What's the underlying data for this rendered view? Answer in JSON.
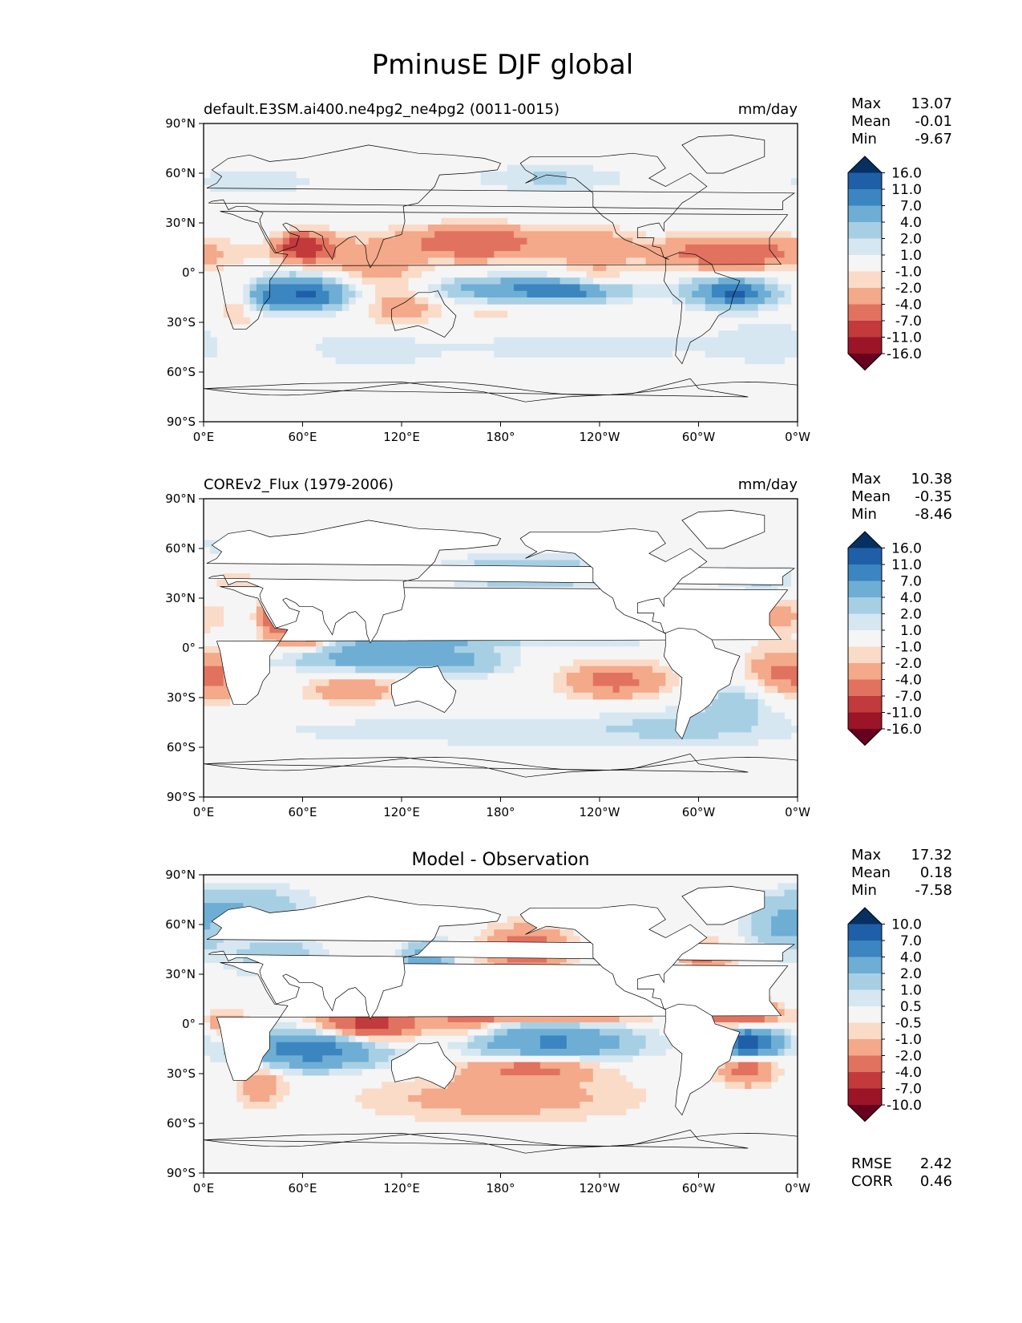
{
  "figure": {
    "title": "PminusE DJF global"
  },
  "chart_data": [
    {
      "type": "heatmap",
      "title": "default.E3SM.ai400.ne4pg2_ne4pg2 (0011-0015)",
      "units": "mm/day",
      "x_ticks": [
        "0°E",
        "60°E",
        "120°E",
        "180°",
        "120°W",
        "60°W",
        "0°W"
      ],
      "y_ticks": [
        "90°N",
        "60°N",
        "30°N",
        "0°",
        "30°S",
        "60°S",
        "90°S"
      ],
      "xlim": [
        0,
        360
      ],
      "ylim": [
        -90,
        90
      ],
      "stats": [
        {
          "label": "Max",
          "value": "13.07"
        },
        {
          "label": "Mean",
          "value": "-0.01"
        },
        {
          "label": "Min",
          "value": "-9.67"
        }
      ],
      "colorbar": {
        "levels": [
          "16.0",
          "11.0",
          "7.0",
          "4.0",
          "2.0",
          "1.0",
          "-1.0",
          "-2.0",
          "-4.0",
          "-7.0",
          "-11.0",
          "-16.0"
        ],
        "colors": [
          "#053061",
          "#1f5fa8",
          "#3b86c0",
          "#6eaed5",
          "#a7cfe4",
          "#d6e7f1",
          "#f5f5f5",
          "#fadbc8",
          "#f3a98a",
          "#e27260",
          "#c23a3b",
          "#9c1428",
          "#67001f"
        ]
      },
      "blobs": [
        {
          "lon": 60,
          "lat": -12,
          "sx": 22,
          "sy": 7,
          "v": 9
        },
        {
          "lon": 65,
          "lat": -15,
          "sx": 9,
          "sy": 4,
          "v": 4
        },
        {
          "lon": 195,
          "lat": -10,
          "sx": 40,
          "sy": 5,
          "v": 7
        },
        {
          "lon": 225,
          "lat": -12,
          "sx": 18,
          "sy": 4,
          "v": 4
        },
        {
          "lon": 320,
          "lat": -12,
          "sx": 18,
          "sy": 6,
          "v": 9
        },
        {
          "lon": 325,
          "lat": -13,
          "sx": 7,
          "sy": 3,
          "v": 4
        },
        {
          "lon": 40,
          "lat": -15,
          "sx": 8,
          "sy": 5,
          "v": 4
        },
        {
          "lon": 210,
          "lat": 57,
          "sx": 35,
          "sy": 6,
          "v": 2.2
        },
        {
          "lon": 30,
          "lat": 55,
          "sx": 30,
          "sy": 6,
          "v": 1.8
        },
        {
          "lon": 230,
          "lat": -45,
          "sx": 60,
          "sy": 8,
          "v": 1.6
        },
        {
          "lon": 100,
          "lat": -45,
          "sx": 30,
          "sy": 10,
          "v": 1.6
        },
        {
          "lon": 345,
          "lat": -42,
          "sx": 25,
          "sy": 10,
          "v": 1.7
        },
        {
          "lon": 62,
          "lat": 15,
          "sx": 12,
          "sy": 6,
          "v": -9
        },
        {
          "lon": 55,
          "lat": 18,
          "sx": 5,
          "sy": 3,
          "v": -4
        },
        {
          "lon": 165,
          "lat": 18,
          "sx": 28,
          "sy": 7,
          "v": -7
        },
        {
          "lon": 235,
          "lat": 15,
          "sx": 18,
          "sy": 10,
          "v": -3
        },
        {
          "lon": 320,
          "lat": 12,
          "sx": 35,
          "sy": 7,
          "v": -6
        },
        {
          "lon": 100,
          "lat": 5,
          "sx": 22,
          "sy": 12,
          "v": -3
        },
        {
          "lon": 120,
          "lat": -20,
          "sx": 18,
          "sy": 10,
          "v": -3
        },
        {
          "lon": 20,
          "lat": -20,
          "sx": 10,
          "sy": 12,
          "v": -2.2
        },
        {
          "lon": 240,
          "lat": -5,
          "sx": 10,
          "sy": 5,
          "v": -2.2
        },
        {
          "lon": 175,
          "lat": -25,
          "sx": 12,
          "sy": 4,
          "v": -1.6
        }
      ]
    },
    {
      "type": "heatmap",
      "title": "COREv2_Flux (1979-2006)",
      "units": "mm/day",
      "x_ticks": [
        "0°E",
        "60°E",
        "120°E",
        "180°",
        "120°W",
        "60°W",
        "0°W"
      ],
      "y_ticks": [
        "90°N",
        "60°N",
        "30°N",
        "0°",
        "30°S",
        "60°S",
        "90°S"
      ],
      "xlim": [
        0,
        360
      ],
      "ylim": [
        -90,
        90
      ],
      "stats": [
        {
          "label": "Max",
          "value": "10.38"
        },
        {
          "label": "Mean",
          "value": "-0.35"
        },
        {
          "label": "Min",
          "value": "-8.46"
        }
      ],
      "colorbar": {
        "levels": [
          "16.0",
          "11.0",
          "7.0",
          "4.0",
          "2.0",
          "1.0",
          "-1.0",
          "-2.0",
          "-4.0",
          "-7.0",
          "-11.0",
          "-16.0"
        ],
        "colors": [
          "#053061",
          "#1f5fa8",
          "#3b86c0",
          "#6eaed5",
          "#a7cfe4",
          "#d6e7f1",
          "#f5f5f5",
          "#fadbc8",
          "#f3a98a",
          "#e27260",
          "#c23a3b",
          "#9c1428",
          "#67001f"
        ]
      },
      "blobs": [
        {
          "lon": 195,
          "lat": 45,
          "sx": 35,
          "sy": 7,
          "v": 4.5
        },
        {
          "lon": 150,
          "lat": 7,
          "sx": 40,
          "sy": 4,
          "v": 5
        },
        {
          "lon": 250,
          "lat": 7,
          "sx": 30,
          "sy": 3,
          "v": 3
        },
        {
          "lon": 110,
          "lat": -2,
          "sx": 25,
          "sy": 7,
          "v": 5
        },
        {
          "lon": 150,
          "lat": -8,
          "sx": 25,
          "sy": 6,
          "v": 4.5
        },
        {
          "lon": 75,
          "lat": -7,
          "sx": 25,
          "sy": 5,
          "v": 3
        },
        {
          "lon": 325,
          "lat": -30,
          "sx": 15,
          "sy": 8,
          "v": 2.5
        },
        {
          "lon": 340,
          "lat": 40,
          "sx": 25,
          "sy": 8,
          "v": 2.5
        },
        {
          "lon": 180,
          "lat": -50,
          "sx": 120,
          "sy": 7,
          "v": 1.7
        },
        {
          "lon": 300,
          "lat": -45,
          "sx": 40,
          "sy": 10,
          "v": 1.6
        },
        {
          "lon": 20,
          "lat": 62,
          "sx": 20,
          "sy": 5,
          "v": 1.6
        },
        {
          "lon": 175,
          "lat": 22,
          "sx": 45,
          "sy": 8,
          "v": -4.5
        },
        {
          "lon": 60,
          "lat": 10,
          "sx": 12,
          "sy": 8,
          "v": -6
        },
        {
          "lon": 40,
          "lat": 20,
          "sx": 5,
          "sy": 10,
          "v": -4
        },
        {
          "lon": 320,
          "lat": 20,
          "sx": 30,
          "sy": 8,
          "v": -5
        },
        {
          "lon": 250,
          "lat": -20,
          "sx": 22,
          "sy": 8,
          "v": -5
        },
        {
          "lon": 350,
          "lat": -15,
          "sx": 15,
          "sy": 10,
          "v": -4.5
        },
        {
          "lon": 90,
          "lat": -25,
          "sx": 20,
          "sy": 6,
          "v": -3.5
        },
        {
          "lon": 10,
          "lat": -20,
          "sx": 8,
          "sy": 10,
          "v": -3
        },
        {
          "lon": 15,
          "lat": 40,
          "sx": 15,
          "sy": 5,
          "v": -2.5
        }
      ]
    },
    {
      "type": "heatmap",
      "title": "Model - Observation",
      "units": "",
      "x_ticks": [
        "0°E",
        "60°E",
        "120°E",
        "180°",
        "120°W",
        "60°W",
        "0°W"
      ],
      "y_ticks": [
        "90°N",
        "60°N",
        "30°N",
        "0°",
        "30°S",
        "60°S",
        "90°S"
      ],
      "xlim": [
        0,
        360
      ],
      "ylim": [
        -90,
        90
      ],
      "stats": [
        {
          "label": "Max",
          "value": "17.32"
        },
        {
          "label": "Mean",
          "value": "0.18"
        },
        {
          "label": "Min",
          "value": "-7.58"
        }
      ],
      "metrics": [
        {
          "label": "RMSE",
          "value": "2.42"
        },
        {
          "label": "CORR",
          "value": "0.46"
        }
      ],
      "colorbar": {
        "levels": [
          "10.0",
          "7.0",
          "4.0",
          "2.0",
          "1.0",
          "0.5",
          "-0.5",
          "-1.0",
          "-2.0",
          "-4.0",
          "-7.0",
          "-10.0"
        ],
        "colors": [
          "#053061",
          "#1f5fa8",
          "#3b86c0",
          "#6eaed5",
          "#a7cfe4",
          "#d6e7f1",
          "#f5f5f5",
          "#fadbc8",
          "#f3a98a",
          "#e27260",
          "#c23a3b",
          "#9c1428",
          "#67001f"
        ]
      },
      "blobs": [
        {
          "lon": 65,
          "lat": -15,
          "sx": 30,
          "sy": 8,
          "v": 5.5
        },
        {
          "lon": 210,
          "lat": -12,
          "sx": 35,
          "sy": 8,
          "v": 4.5
        },
        {
          "lon": 330,
          "lat": -12,
          "sx": 12,
          "sy": 6,
          "v": 9
        },
        {
          "lon": 135,
          "lat": 35,
          "sx": 10,
          "sy": 10,
          "v": 4
        },
        {
          "lon": 275,
          "lat": 30,
          "sx": 12,
          "sy": 8,
          "v": 3.5
        },
        {
          "lon": 20,
          "lat": 70,
          "sx": 30,
          "sy": 10,
          "v": 2
        },
        {
          "lon": 45,
          "lat": 40,
          "sx": 20,
          "sy": 8,
          "v": 1.8
        },
        {
          "lon": 350,
          "lat": 55,
          "sx": 15,
          "sy": 10,
          "v": 1.8
        },
        {
          "lon": 195,
          "lat": 20,
          "sx": 8,
          "sy": 4,
          "v": 1.6
        },
        {
          "lon": 195,
          "lat": 45,
          "sx": 18,
          "sy": 10,
          "v": -3
        },
        {
          "lon": 100,
          "lat": 0,
          "sx": 22,
          "sy": 8,
          "v": -5
        },
        {
          "lon": 160,
          "lat": 5,
          "sx": 12,
          "sy": 10,
          "v": -2.5
        },
        {
          "lon": 215,
          "lat": 7,
          "sx": 35,
          "sy": 4,
          "v": -4
        },
        {
          "lon": 325,
          "lat": 6,
          "sx": 15,
          "sy": 5,
          "v": -5
        },
        {
          "lon": 300,
          "lat": 40,
          "sx": 15,
          "sy": 7,
          "v": -2.5
        },
        {
          "lon": 330,
          "lat": -25,
          "sx": 12,
          "sy": 8,
          "v": -3
        },
        {
          "lon": 200,
          "lat": -25,
          "sx": 30,
          "sy": 6,
          "v": -3
        },
        {
          "lon": 180,
          "lat": -45,
          "sx": 60,
          "sy": 10,
          "v": -1.5
        },
        {
          "lon": 35,
          "lat": -35,
          "sx": 10,
          "sy": 10,
          "v": -1.8
        },
        {
          "lon": 15,
          "lat": 0,
          "sx": 8,
          "sy": 5,
          "v": -2.2
        }
      ]
    }
  ]
}
